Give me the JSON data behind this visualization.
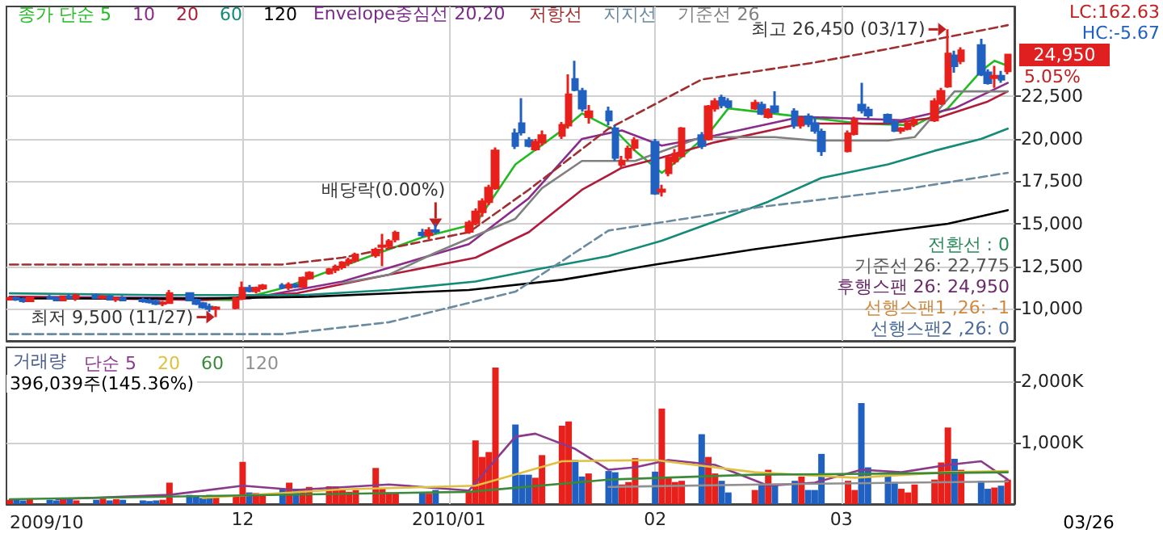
{
  "chart_data": [
    {
      "type": "candlestick",
      "x": [
        "2009-10-27",
        "2009-10-28",
        "2009-10-29",
        "2009-10-30",
        "2009-11-02",
        "2009-11-03",
        "2009-11-04",
        "2009-11-05",
        "2009-11-06",
        "2009-11-09",
        "2009-11-10",
        "2009-11-11",
        "2009-11-12",
        "2009-11-13",
        "2009-11-16",
        "2009-11-17",
        "2009-11-18",
        "2009-11-19",
        "2009-11-20",
        "2009-11-23",
        "2009-11-24",
        "2009-11-25",
        "2009-11-26",
        "2009-11-27",
        "2009-11-30",
        "2009-12-01",
        "2009-12-02",
        "2009-12-03",
        "2009-12-04",
        "2009-12-07",
        "2009-12-08",
        "2009-12-09",
        "2009-12-10",
        "2009-12-11",
        "2009-12-14",
        "2009-12-15",
        "2009-12-16",
        "2009-12-17",
        "2009-12-18",
        "2009-12-21",
        "2009-12-22",
        "2009-12-23",
        "2009-12-24",
        "2009-12-28",
        "2009-12-29",
        "2009-12-30",
        "2010-01-04",
        "2010-01-05",
        "2010-01-06",
        "2010-01-07",
        "2010-01-08",
        "2010-01-11",
        "2010-01-12",
        "2010-01-13",
        "2010-01-14",
        "2010-01-15",
        "2010-01-18",
        "2010-01-19",
        "2010-01-20",
        "2010-01-21",
        "2010-01-22",
        "2010-01-25",
        "2010-01-26",
        "2010-01-27",
        "2010-01-28",
        "2010-01-29",
        "2010-02-01",
        "2010-02-02",
        "2010-02-03",
        "2010-02-04",
        "2010-02-05",
        "2010-02-08",
        "2010-02-09",
        "2010-02-10",
        "2010-02-11",
        "2010-02-12",
        "2010-02-16",
        "2010-02-17",
        "2010-02-18",
        "2010-02-19",
        "2010-02-22",
        "2010-02-23",
        "2010-02-24",
        "2010-02-25",
        "2010-02-26",
        "2010-03-02",
        "2010-03-03",
        "2010-03-04",
        "2010-03-05",
        "2010-03-08",
        "2010-03-09",
        "2010-03-10",
        "2010-03-11",
        "2010-03-12",
        "2010-03-15",
        "2010-03-16",
        "2010-03-17",
        "2010-03-18",
        "2010-03-19",
        "2010-03-22",
        "2010-03-23",
        "2010-03-24",
        "2010-03-25",
        "2010-03-26"
      ],
      "ohlc": [
        [
          10550,
          10700,
          10500,
          10600
        ],
        [
          10600,
          10750,
          10450,
          10550
        ],
        [
          10550,
          10650,
          10350,
          10450
        ],
        [
          10450,
          10700,
          10400,
          10650
        ],
        [
          10650,
          10800,
          10550,
          10600
        ],
        [
          10600,
          10700,
          10450,
          10500
        ],
        [
          10500,
          10750,
          10450,
          10700
        ],
        [
          10700,
          10850,
          10600,
          10650
        ],
        [
          10650,
          10900,
          10450,
          10750
        ],
        [
          10750,
          10900,
          10600,
          10650
        ],
        [
          10650,
          10800,
          10550,
          10700
        ],
        [
          10700,
          10800,
          10500,
          10550
        ],
        [
          10550,
          10700,
          10400,
          10600
        ],
        [
          10600,
          10750,
          10450,
          10500
        ],
        [
          10500,
          10650,
          10350,
          10450
        ],
        [
          10450,
          10600,
          10300,
          10400
        ],
        [
          10400,
          10550,
          10200,
          10300
        ],
        [
          10300,
          10450,
          10150,
          10350
        ],
        [
          10350,
          11100,
          10300,
          10900
        ],
        [
          10900,
          10950,
          10450,
          10500
        ],
        [
          10500,
          10600,
          10200,
          10300
        ],
        [
          10300,
          10400,
          10000,
          10100
        ],
        [
          10100,
          10300,
          9800,
          10000
        ],
        [
          10000,
          10150,
          9500,
          10050
        ],
        [
          10050,
          10700,
          9950,
          10600
        ],
        [
          10600,
          11600,
          10500,
          11200
        ],
        [
          11200,
          11400,
          10950,
          11050
        ],
        [
          11050,
          11300,
          10900,
          11200
        ],
        [
          11200,
          11450,
          11100,
          11350
        ],
        [
          11350,
          11500,
          11150,
          11250
        ],
        [
          11250,
          11550,
          11100,
          11400
        ],
        [
          11400,
          11500,
          11200,
          11300
        ],
        [
          11300,
          11900,
          11250,
          11800
        ],
        [
          11800,
          12200,
          11700,
          12100
        ],
        [
          12100,
          12400,
          12000,
          12300
        ],
        [
          12300,
          12600,
          12100,
          12450
        ],
        [
          12450,
          12800,
          12300,
          12700
        ],
        [
          12700,
          13000,
          12500,
          12850
        ],
        [
          12850,
          13300,
          12700,
          13150
        ],
        [
          13150,
          13600,
          13000,
          13450
        ],
        [
          13650,
          14400,
          12500,
          13700
        ],
        [
          13700,
          14100,
          13500,
          13950
        ],
        [
          14100,
          14600,
          13900,
          14450
        ],
        [
          14450,
          14700,
          14200,
          14350
        ],
        [
          14350,
          14800,
          14100,
          14600
        ],
        [
          14600,
          15000,
          14400,
          14550
        ],
        [
          14550,
          15200,
          14400,
          15050
        ],
        [
          15050,
          15900,
          14900,
          15700
        ],
        [
          15700,
          16500,
          15400,
          16300
        ],
        [
          16300,
          17300,
          16100,
          17100
        ],
        [
          17100,
          19500,
          17000,
          19300
        ],
        [
          20300,
          20600,
          19400,
          19600
        ],
        [
          20900,
          22400,
          20200,
          20400
        ],
        [
          19900,
          20100,
          19500,
          19600
        ],
        [
          19400,
          20000,
          19300,
          19800
        ],
        [
          19800,
          20500,
          19600,
          20200
        ],
        [
          20200,
          21000,
          20000,
          20800
        ],
        [
          20800,
          23800,
          20600,
          22600
        ],
        [
          23500,
          24600,
          22800,
          22900
        ],
        [
          22800,
          23000,
          21600,
          21800
        ],
        [
          21300,
          22000,
          20900,
          21600
        ],
        [
          21600,
          21900,
          20800,
          21100
        ],
        [
          20600,
          20800,
          18700,
          18900
        ],
        [
          18500,
          19000,
          18300,
          18700
        ],
        [
          18900,
          19600,
          18700,
          19400
        ],
        [
          19500,
          20100,
          19300,
          19900
        ],
        [
          19800,
          20000,
          16700,
          16800
        ],
        [
          16900,
          17300,
          16600,
          17000
        ],
        [
          18000,
          19000,
          17800,
          18900
        ],
        [
          18700,
          19400,
          18500,
          19100
        ],
        [
          19000,
          20700,
          18900,
          20600
        ],
        [
          20200,
          20400,
          19400,
          19600
        ],
        [
          20000,
          22000,
          19900,
          21900
        ],
        [
          21800,
          22400,
          21600,
          22200
        ],
        [
          22400,
          22600,
          21800,
          22000
        ],
        [
          22200,
          22400,
          21800,
          21900
        ],
        [
          21800,
          22300,
          21700,
          22100
        ],
        [
          22000,
          22200,
          21400,
          21500
        ],
        [
          21300,
          21800,
          21200,
          21700
        ],
        [
          21900,
          22800,
          21500,
          21600
        ],
        [
          21600,
          21800,
          20600,
          20800
        ],
        [
          20800,
          21300,
          20600,
          21200
        ],
        [
          21300,
          21500,
          20700,
          20900
        ],
        [
          20900,
          21300,
          20300,
          20500
        ],
        [
          20400,
          20600,
          19000,
          19300
        ],
        [
          19300,
          20500,
          19200,
          20300
        ],
        [
          20300,
          21300,
          20200,
          21100
        ],
        [
          22000,
          23300,
          21500,
          21700
        ],
        [
          21700,
          21900,
          21200,
          21400
        ],
        [
          21400,
          21500,
          20900,
          21000
        ],
        [
          21000,
          21100,
          20400,
          20500
        ],
        [
          20500,
          20700,
          20300,
          20600
        ],
        [
          20600,
          21100,
          20500,
          20900
        ],
        [
          20900,
          21300,
          20700,
          21100
        ],
        [
          21100,
          22400,
          21000,
          22200
        ],
        [
          22100,
          23000,
          22000,
          22800
        ],
        [
          23100,
          26450,
          23000,
          25000
        ],
        [
          24900,
          25200,
          23900,
          24300
        ],
        [
          24600,
          25400,
          24400,
          25200
        ],
        [
          25500,
          25900,
          23700,
          23800
        ],
        [
          23900,
          24100,
          23200,
          23300
        ],
        [
          23600,
          24300,
          23000,
          23700
        ],
        [
          23700,
          24000,
          23300,
          23500
        ],
        [
          24000,
          25000,
          23800,
          24950
        ]
      ],
      "colors": [
        "#e8201c",
        "#2060c0",
        "#2060c0",
        "#e8201c",
        "#2060c0",
        "#2060c0",
        "#e8201c",
        "#2060c0",
        "#e8201c",
        "#2060c0",
        "#e8201c",
        "#2060c0",
        "#e8201c",
        "#2060c0",
        "#2060c0",
        "#2060c0",
        "#2060c0",
        "#e8201c",
        "#e8201c",
        "#2060c0",
        "#2060c0",
        "#2060c0",
        "#2060c0",
        "#e8201c",
        "#e8201c",
        "#e8201c",
        "#2060c0",
        "#e8201c",
        "#e8201c",
        "#2060c0",
        "#e8201c",
        "#2060c0",
        "#e8201c",
        "#e8201c",
        "#e8201c",
        "#e8201c",
        "#e8201c",
        "#e8201c",
        "#e8201c",
        "#e8201c",
        "#e8201c",
        "#e8201c",
        "#e8201c",
        "#2060c0",
        "#e8201c",
        "#2060c0",
        "#e8201c",
        "#e8201c",
        "#e8201c",
        "#e8201c",
        "#e8201c",
        "#2060c0",
        "#2060c0",
        "#2060c0",
        "#e8201c",
        "#e8201c",
        "#e8201c",
        "#e8201c",
        "#2060c0",
        "#2060c0",
        "#e8201c",
        "#2060c0",
        "#2060c0",
        "#e8201c",
        "#e8201c",
        "#e8201c",
        "#2060c0",
        "#e8201c",
        "#e8201c",
        "#e8201c",
        "#e8201c",
        "#2060c0",
        "#e8201c",
        "#e8201c",
        "#2060c0",
        "#2060c0",
        "#e8201c",
        "#2060c0",
        "#e8201c",
        "#2060c0",
        "#2060c0",
        "#e8201c",
        "#2060c0",
        "#2060c0",
        "#2060c0",
        "#e8201c",
        "#e8201c",
        "#2060c0",
        "#2060c0",
        "#2060c0",
        "#2060c0",
        "#e8201c",
        "#e8201c",
        "#e8201c",
        "#e8201c",
        "#e8201c",
        "#e8201c",
        "#2060c0",
        "#e8201c",
        "#2060c0",
        "#2060c0",
        "#e8201c",
        "#2060c0",
        "#e8201c"
      ],
      "series": [
        {
          "name": "종가 단순 5",
          "type": "line",
          "color": "#22bb22",
          "x": [
            "2009-10-27",
            "2009-11-13",
            "2009-11-30",
            "2009-12-07",
            "2009-12-16",
            "2009-12-28",
            "2010-01-05",
            "2010-01-11",
            "2010-01-18",
            "2010-01-21",
            "2010-01-26",
            "2010-01-29",
            "2010-02-02",
            "2010-02-04",
            "2010-02-09",
            "2010-02-12",
            "2010-02-23",
            "2010-03-04",
            "2010-03-12",
            "2010-03-17",
            "2010-03-22",
            "2010-03-24",
            "2010-03-26"
          ],
          "values": [
            10700,
            10600,
            10500,
            11200,
            12500,
            14200,
            15000,
            18500,
            20500,
            21500,
            20500,
            19300,
            18000,
            18600,
            20300,
            21800,
            21300,
            20900,
            20800,
            21800,
            24000,
            24600,
            24300
          ]
        },
        {
          "name": "10",
          "type": "line",
          "color": "#8b2c8b",
          "x": [
            "2009-10-27",
            "2009-12-02",
            "2009-12-16",
            "2010-01-04",
            "2010-01-13",
            "2010-01-21",
            "2010-01-27",
            "2010-02-02",
            "2010-02-10",
            "2010-02-23",
            "2010-03-10",
            "2010-03-18",
            "2010-03-26"
          ],
          "values": [
            10700,
            10600,
            11600,
            13800,
            16500,
            20000,
            20500,
            19600,
            20200,
            21300,
            21100,
            21800,
            23300
          ]
        },
        {
          "name": "20",
          "type": "line",
          "color": "#b01c3c",
          "x": [
            "2009-10-27",
            "2009-11-25",
            "2009-12-09",
            "2009-12-23",
            "2010-01-05",
            "2010-01-13",
            "2010-01-21",
            "2010-01-27",
            "2010-02-02",
            "2010-02-10",
            "2010-02-23",
            "2010-03-08",
            "2010-03-16",
            "2010-03-23",
            "2010-03-26"
          ],
          "values": [
            10700,
            10500,
            10900,
            12000,
            13000,
            14500,
            17000,
            18300,
            18900,
            19800,
            20900,
            20900,
            21300,
            22200,
            22800
          ]
        },
        {
          "name": "60",
          "type": "line",
          "color": "#148a78",
          "x": [
            "2009-10-27",
            "2009-11-18",
            "2009-12-10",
            "2009-12-23",
            "2010-01-05",
            "2010-01-14",
            "2010-01-25",
            "2010-02-02",
            "2010-02-09",
            "2010-02-18",
            "2010-02-26",
            "2010-03-08",
            "2010-03-15",
            "2010-03-22",
            "2010-03-26"
          ],
          "values": [
            10900,
            10800,
            10800,
            11100,
            11600,
            12300,
            13100,
            14000,
            15000,
            16300,
            17700,
            18500,
            19300,
            20000,
            20600
          ]
        },
        {
          "name": "120",
          "type": "line",
          "color": "#000000",
          "x": [
            "2009-10-27",
            "2009-11-25",
            "2009-12-11",
            "2010-01-04",
            "2010-01-18",
            "2010-02-01",
            "2010-02-16",
            "2010-03-03",
            "2010-03-17",
            "2010-03-26"
          ],
          "values": [
            10600,
            10600,
            10700,
            11100,
            11700,
            12600,
            13500,
            14300,
            15000,
            15800
          ]
        },
        {
          "name": "저항선",
          "type": "line",
          "color": "#a03030",
          "line_style": "dashed",
          "x": [
            "2009-10-27",
            "2009-12-07",
            "2009-12-16",
            "2010-01-04",
            "2010-01-13",
            "2010-01-25",
            "2010-02-08",
            "2010-02-25",
            "2010-03-08",
            "2010-03-17",
            "2010-03-26"
          ],
          "values": [
            12600,
            12600,
            13000,
            14500,
            17000,
            20600,
            23500,
            24500,
            25300,
            26000,
            26700
          ]
        },
        {
          "name": "지지선",
          "type": "line",
          "color": "#6a8aa0",
          "line_style": "dashed",
          "x": [
            "2009-10-27",
            "2009-12-07",
            "2009-12-23",
            "2010-01-11",
            "2010-01-25",
            "2010-02-17",
            "2010-03-10",
            "2010-03-26"
          ],
          "values": [
            8500,
            8500,
            9200,
            11000,
            14600,
            16000,
            17000,
            18000
          ]
        },
        {
          "name": "기준선 26",
          "type": "line",
          "color": "#808080",
          "x": [
            "2009-12-16",
            "2009-12-23",
            "2009-12-30",
            "2010-01-11",
            "2010-01-15",
            "2010-01-21",
            "2010-01-29",
            "2010-02-08",
            "2010-02-19",
            "2010-02-25",
            "2010-03-08",
            "2010-03-12",
            "2010-03-18",
            "2010-03-26"
          ],
          "values": [
            11500,
            12000,
            13300,
            15300,
            17100,
            18700,
            18700,
            20100,
            20100,
            19900,
            19900,
            20100,
            22800,
            22800
          ]
        }
      ],
      "xlim": [
        "2009-10-26T12:00",
        "2010-03-27"
      ],
      "xticks": [
        {
          "value": "2009-12-01",
          "label": null
        },
        {
          "value": "2010-01-01",
          "label": null
        },
        {
          "value": "2010-02-01",
          "label": null
        },
        {
          "value": "2010-03-01",
          "label": null
        }
      ],
      "tick_labels": "y",
      "ylim": [
        8100,
        27800
      ],
      "yticks": [
        {
          "value": 10000,
          "label": "10,000"
        },
        {
          "value": 12500,
          "label": "12,500"
        },
        {
          "value": 15000,
          "label": "15,000"
        },
        {
          "value": 17500,
          "label": "17,500"
        },
        {
          "value": 20000,
          "label": "20,000"
        },
        {
          "value": 22500,
          "label": "22,500"
        }
      ],
      "grid": true,
      "legend": "top left",
      "annotations": [
        "Envelope중심선 20,20",
        "LC:162.63",
        "HC:-5.67",
        "24,950",
        "5.05%",
        {
          "text": "최고 26,450 (03/17)",
          "x": "2010-03-17",
          "y": 26450
        },
        {
          "text": "최저 9,500 (11/27)",
          "x": "2009-11-27",
          "y": 9500
        },
        {
          "text": "배당락(0.00%)",
          "x": "2009-12-30",
          "y": 14550
        },
        "전환선 : 0",
        "기준선 26: 22,775",
        "후행스팬 26: 24,950",
        "선행스팬1 ,26: -1",
        "선행스팬2 ,26: 0"
      ]
    },
    {
      "type": "bar",
      "title": "거래량",
      "x": [
        "2009-10-27",
        "2009-10-28",
        "2009-10-29",
        "2009-10-30",
        "2009-11-02",
        "2009-11-03",
        "2009-11-04",
        "2009-11-05",
        "2009-11-06",
        "2009-11-09",
        "2009-11-10",
        "2009-11-11",
        "2009-11-12",
        "2009-11-13",
        "2009-11-16",
        "2009-11-17",
        "2009-11-18",
        "2009-11-19",
        "2009-11-20",
        "2009-11-23",
        "2009-11-24",
        "2009-11-25",
        "2009-11-26",
        "2009-11-27",
        "2009-11-30",
        "2009-12-01",
        "2009-12-02",
        "2009-12-03",
        "2009-12-04",
        "2009-12-07",
        "2009-12-08",
        "2009-12-09",
        "2009-12-10",
        "2009-12-11",
        "2009-12-14",
        "2009-12-15",
        "2009-12-16",
        "2009-12-17",
        "2009-12-18",
        "2009-12-21",
        "2009-12-22",
        "2009-12-23",
        "2009-12-24",
        "2009-12-28",
        "2009-12-29",
        "2009-12-30",
        "2010-01-04",
        "2010-01-05",
        "2010-01-06",
        "2010-01-07",
        "2010-01-08",
        "2010-01-11",
        "2010-01-12",
        "2010-01-13",
        "2010-01-14",
        "2010-01-15",
        "2010-01-18",
        "2010-01-19",
        "2010-01-20",
        "2010-01-21",
        "2010-01-22",
        "2010-01-25",
        "2010-01-26",
        "2010-01-27",
        "2010-01-28",
        "2010-01-29",
        "2010-02-01",
        "2010-02-02",
        "2010-02-03",
        "2010-02-04",
        "2010-02-05",
        "2010-02-08",
        "2010-02-09",
        "2010-02-10",
        "2010-02-11",
        "2010-02-12",
        "2010-02-16",
        "2010-02-17",
        "2010-02-18",
        "2010-02-19",
        "2010-02-22",
        "2010-02-23",
        "2010-02-24",
        "2010-02-25",
        "2010-02-26",
        "2010-03-02",
        "2010-03-03",
        "2010-03-04",
        "2010-03-05",
        "2010-03-08",
        "2010-03-09",
        "2010-03-10",
        "2010-03-11",
        "2010-03-12",
        "2010-03-15",
        "2010-03-16",
        "2010-03-17",
        "2010-03-18",
        "2010-03-19",
        "2010-03-22",
        "2010-03-23",
        "2010-03-24",
        "2010-03-25",
        "2010-03-26"
      ],
      "values": [
        70,
        80,
        60,
        90,
        70,
        60,
        100,
        80,
        60,
        70,
        90,
        60,
        80,
        70,
        60,
        50,
        60,
        70,
        350,
        150,
        120,
        100,
        150,
        130,
        120,
        690,
        190,
        180,
        170,
        240,
        350,
        250,
        230,
        280,
        290,
        290,
        250,
        200,
        230,
        590,
        250,
        190,
        180,
        190,
        170,
        230,
        200,
        1040,
        770,
        850,
        2230,
        1300,
        480,
        480,
        430,
        800,
        1280,
        1350,
        720,
        450,
        500,
        540,
        520,
        320,
        360,
        750,
        530,
        1560,
        440,
        360,
        380,
        1140,
        770,
        500,
        380,
        190,
        230,
        320,
        560,
        320,
        380,
        450,
        230,
        230,
        820,
        380,
        230,
        1650,
        600,
        450,
        360,
        250,
        190,
        320,
        400,
        680,
        1250,
        740,
        560,
        380,
        250,
        270,
        300,
        400
      ],
      "colors": [
        "#e8201c",
        "#2060c0",
        "#2060c0",
        "#e8201c",
        "#2060c0",
        "#2060c0",
        "#e8201c",
        "#2060c0",
        "#e8201c",
        "#2060c0",
        "#e8201c",
        "#2060c0",
        "#e8201c",
        "#2060c0",
        "#2060c0",
        "#2060c0",
        "#2060c0",
        "#e8201c",
        "#e8201c",
        "#2060c0",
        "#2060c0",
        "#2060c0",
        "#2060c0",
        "#e8201c",
        "#e8201c",
        "#e8201c",
        "#2060c0",
        "#e8201c",
        "#e8201c",
        "#2060c0",
        "#e8201c",
        "#2060c0",
        "#e8201c",
        "#e8201c",
        "#e8201c",
        "#e8201c",
        "#e8201c",
        "#e8201c",
        "#e8201c",
        "#e8201c",
        "#e8201c",
        "#e8201c",
        "#e8201c",
        "#2060c0",
        "#e8201c",
        "#2060c0",
        "#e8201c",
        "#e8201c",
        "#e8201c",
        "#e8201c",
        "#e8201c",
        "#2060c0",
        "#2060c0",
        "#2060c0",
        "#e8201c",
        "#e8201c",
        "#e8201c",
        "#e8201c",
        "#2060c0",
        "#2060c0",
        "#e8201c",
        "#2060c0",
        "#2060c0",
        "#e8201c",
        "#e8201c",
        "#e8201c",
        "#2060c0",
        "#e8201c",
        "#e8201c",
        "#e8201c",
        "#e8201c",
        "#2060c0",
        "#e8201c",
        "#e8201c",
        "#2060c0",
        "#2060c0",
        "#e8201c",
        "#2060c0",
        "#e8201c",
        "#2060c0",
        "#2060c0",
        "#e8201c",
        "#2060c0",
        "#2060c0",
        "#2060c0",
        "#e8201c",
        "#e8201c",
        "#2060c0",
        "#2060c0",
        "#2060c0",
        "#2060c0",
        "#e8201c",
        "#e8201c",
        "#e8201c",
        "#e8201c",
        "#e8201c",
        "#e8201c",
        "#2060c0",
        "#e8201c",
        "#2060c0",
        "#2060c0",
        "#e8201c",
        "#2060c0",
        "#e8201c"
      ],
      "series": [
        {
          "name": "단순 5",
          "type": "line",
          "color": "#8b3a8b",
          "x": [
            "2009-11-03",
            "2009-11-20",
            "2009-12-01",
            "2009-12-09",
            "2009-12-23",
            "2010-01-04",
            "2010-01-11",
            "2010-01-14",
            "2010-01-20",
            "2010-01-25",
            "2010-01-29",
            "2010-02-03",
            "2010-02-10",
            "2010-02-18",
            "2010-02-25",
            "2010-03-04",
            "2010-03-10",
            "2010-03-17",
            "2010-03-22",
            "2010-03-26"
          ],
          "values": [
            80,
            150,
            300,
            230,
            320,
            220,
            1100,
            1150,
            900,
            560,
            600,
            720,
            640,
            300,
            350,
            560,
            520,
            640,
            700,
            400
          ]
        },
        {
          "name": "20",
          "type": "line",
          "color": "#e0c040",
          "x": [
            "2009-11-25",
            "2009-12-16",
            "2010-01-05",
            "2010-01-18",
            "2010-02-01",
            "2010-02-16",
            "2010-03-03",
            "2010-03-17",
            "2010-03-26"
          ],
          "values": [
            100,
            240,
            300,
            700,
            720,
            520,
            430,
            520,
            540
          ]
        },
        {
          "name": "60",
          "type": "line",
          "color": "#3a8a3a",
          "x": [
            "2009-10-27",
            "2010-01-04",
            "2010-01-25",
            "2010-02-16",
            "2010-03-10",
            "2010-03-26"
          ],
          "values": [
            80,
            200,
            400,
            480,
            500,
            520
          ]
        },
        {
          "name": "120",
          "type": "line",
          "color": "#909090",
          "x": [
            "2010-01-25",
            "2010-02-23",
            "2010-03-26"
          ],
          "values": [
            280,
            330,
            370
          ]
        }
      ],
      "xlim": [
        "2009-10-26T12:00",
        "2010-03-27"
      ],
      "xticks": [
        {
          "value": "2009-12-01",
          "label": "12"
        },
        {
          "value": "2010-01-01",
          "label": "2010/01"
        },
        {
          "value": "2010-02-01",
          "label": "02"
        },
        {
          "value": "2010-03-01",
          "label": "03"
        }
      ],
      "ylim": [
        0,
        2560
      ],
      "yticks": [
        {
          "value": 1000,
          "label": "1,000K"
        },
        {
          "value": 2000,
          "label": "2,000K"
        }
      ],
      "grid": true,
      "legend": "top left",
      "annotations": [
        "396,039주(145.36%)",
        "03/26",
        "2009/10"
      ]
    }
  ]
}
